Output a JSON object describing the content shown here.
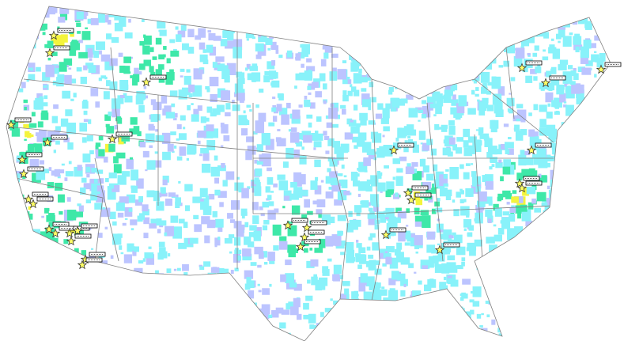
{
  "map": {
    "region": "contiguous-united-states",
    "colors": {
      "background": "#ffffff",
      "low": "#bcc4ff",
      "medium": "#88f2fa",
      "high": "#3ee8a8",
      "very_high": "#f4f43c",
      "peak": "#f0c030",
      "boundaries": "#808080",
      "marker_fill": "#ffff66",
      "marker_stroke": "#333333"
    },
    "marker_icon": "star-icon",
    "marker_label_box": "label-box"
  }
}
